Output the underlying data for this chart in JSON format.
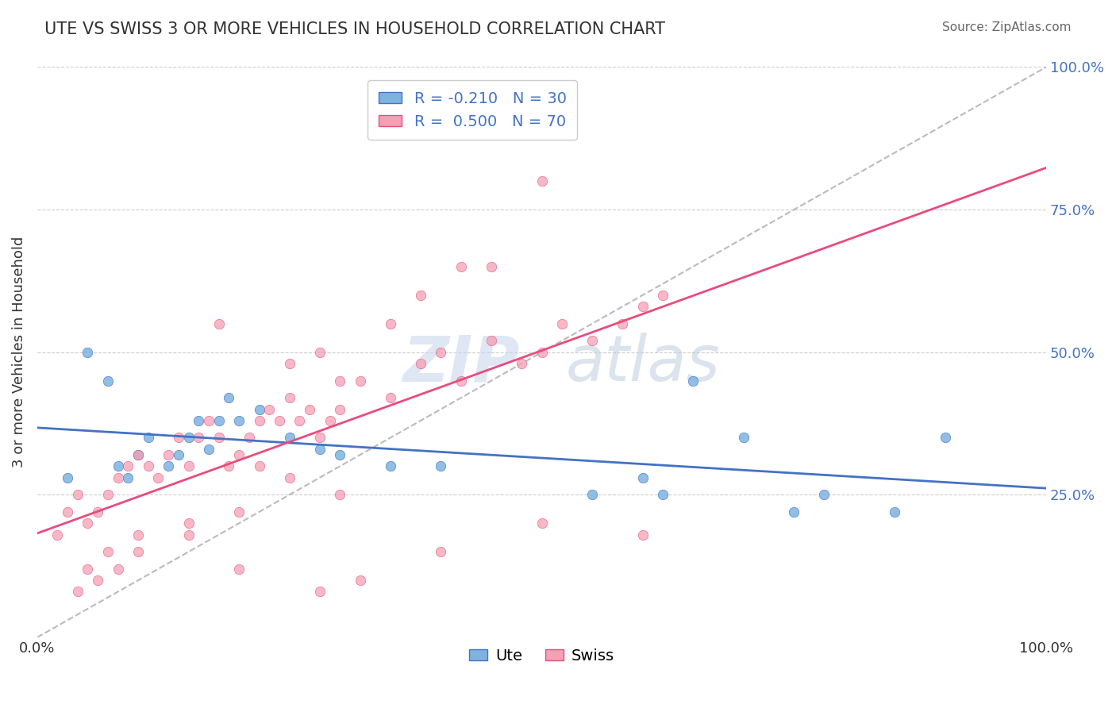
{
  "title": "UTE VS SWISS 3 OR MORE VEHICLES IN HOUSEHOLD CORRELATION CHART",
  "source": "Source: ZipAtlas.com",
  "ylabel": "3 or more Vehicles in Household",
  "legend_label1": "Ute",
  "legend_label2": "Swiss",
  "R1": -0.21,
  "N1": 30,
  "R2": 0.5,
  "N2": 70,
  "color_ute": "#7EB3E0",
  "color_swiss": "#F4A0B5",
  "color_ute_line": "#4472C4",
  "color_swiss_line": "#E84C7D",
  "color_ref_line": "#BBBBBB",
  "watermark_zip": "ZIP",
  "watermark_atlas": "atlas",
  "ute_x": [
    3,
    5,
    7,
    8,
    9,
    10,
    11,
    13,
    14,
    15,
    16,
    17,
    18,
    19,
    20,
    22,
    25,
    28,
    30,
    35,
    40,
    55,
    60,
    62,
    65,
    70,
    75,
    78,
    85,
    90
  ],
  "ute_y": [
    28,
    50,
    45,
    30,
    28,
    32,
    35,
    30,
    32,
    35,
    38,
    33,
    38,
    42,
    38,
    40,
    35,
    33,
    32,
    30,
    30,
    25,
    28,
    25,
    45,
    35,
    22,
    25,
    22,
    35
  ],
  "swiss_x": [
    2,
    3,
    4,
    5,
    6,
    7,
    8,
    9,
    10,
    11,
    12,
    13,
    14,
    15,
    16,
    17,
    18,
    19,
    20,
    21,
    22,
    23,
    24,
    25,
    26,
    27,
    28,
    29,
    30,
    32,
    35,
    38,
    40,
    42,
    45,
    48,
    50,
    52,
    55,
    58,
    60,
    62,
    18,
    25,
    30,
    35,
    38,
    42,
    28,
    22,
    15,
    10,
    7,
    5,
    45,
    50,
    30,
    25,
    20,
    15,
    10,
    8,
    6,
    4,
    20,
    28,
    32,
    40,
    50,
    60
  ],
  "swiss_y": [
    18,
    22,
    25,
    20,
    22,
    25,
    28,
    30,
    32,
    30,
    28,
    32,
    35,
    30,
    35,
    38,
    35,
    30,
    32,
    35,
    38,
    40,
    38,
    42,
    38,
    40,
    35,
    38,
    40,
    45,
    42,
    48,
    50,
    45,
    52,
    48,
    50,
    55,
    52,
    55,
    58,
    60,
    55,
    48,
    45,
    55,
    60,
    65,
    50,
    30,
    20,
    18,
    15,
    12,
    65,
    80,
    25,
    28,
    22,
    18,
    15,
    12,
    10,
    8,
    12,
    8,
    10,
    15,
    20,
    18
  ]
}
